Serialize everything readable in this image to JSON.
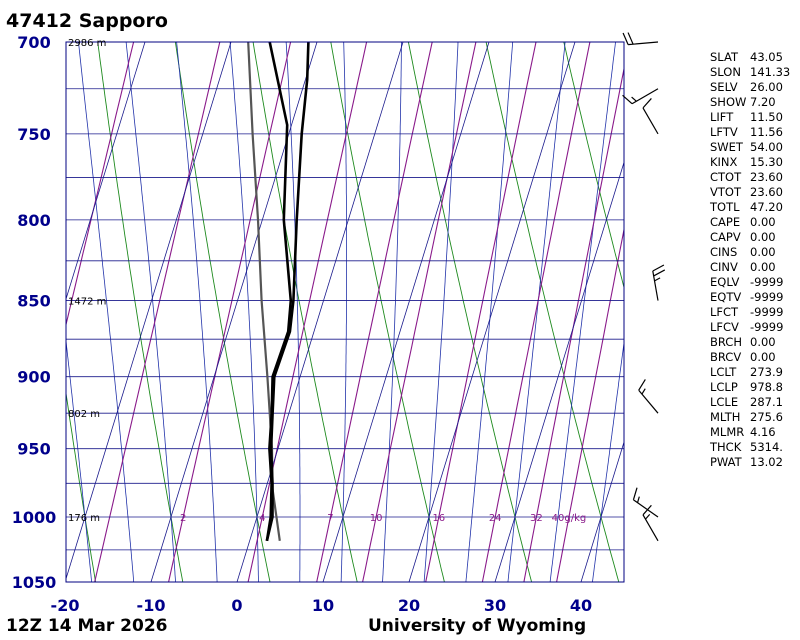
{
  "header": {
    "title": "47412  Sapporo"
  },
  "footer": {
    "time": "12Z 14 Mar 2026",
    "source": "University of Wyoming"
  },
  "colors": {
    "isotherm": "#1a1a8c",
    "dry_adiabat": "#1e8a1e",
    "moist_adiabat": "#2233aa",
    "mixing_ratio": "#8a1a8a",
    "temperature": "#000000",
    "dewpoint": "#000000",
    "parcel": "#555555",
    "axis_label": "#00008b"
  },
  "indices": [
    {
      "name": "SLAT",
      "value": "43.05"
    },
    {
      "name": "SLON",
      "value": "141.33"
    },
    {
      "name": "SELV",
      "value": "26.00"
    },
    {
      "name": "SHOW",
      "value": "7.20"
    },
    {
      "name": "LIFT",
      "value": "11.50"
    },
    {
      "name": "LFTV",
      "value": "11.56"
    },
    {
      "name": "SWET",
      "value": "54.00"
    },
    {
      "name": "KINX",
      "value": "15.30"
    },
    {
      "name": "CTOT",
      "value": "23.60"
    },
    {
      "name": "VTOT",
      "value": "23.60"
    },
    {
      "name": "TOTL",
      "value": "47.20"
    },
    {
      "name": "CAPE",
      "value": "0.00"
    },
    {
      "name": "CAPV",
      "value": "0.00"
    },
    {
      "name": "CINS",
      "value": "0.00"
    },
    {
      "name": "CINV",
      "value": "0.00"
    },
    {
      "name": "EQLV",
      "value": "-9999"
    },
    {
      "name": "EQTV",
      "value": "-9999"
    },
    {
      "name": "LFCT",
      "value": "-9999"
    },
    {
      "name": "LFCV",
      "value": "-9999"
    },
    {
      "name": "BRCH",
      "value": "0.00"
    },
    {
      "name": "BRCV",
      "value": "0.00"
    },
    {
      "name": "LCLT",
      "value": "273.9"
    },
    {
      "name": "LCLP",
      "value": "978.8"
    },
    {
      "name": "LCLE",
      "value": "287.1"
    },
    {
      "name": "MLTH",
      "value": "275.6"
    },
    {
      "name": "MLMR",
      "value": "4.16"
    },
    {
      "name": "THCK",
      "value": "5314."
    },
    {
      "name": "PWAT",
      "value": "13.02"
    }
  ],
  "chart_data": {
    "type": "skew-t",
    "x_range": [
      -20,
      45
    ],
    "y_range": [
      700,
      1050
    ],
    "y_scale": "log",
    "x_ticks": [
      -20,
      -10,
      0,
      10,
      20,
      30,
      40
    ],
    "y_ticks": [
      700,
      750,
      800,
      850,
      900,
      950,
      1000,
      1050
    ],
    "pressure_gridlines": [
      700,
      725,
      750,
      775,
      800,
      825,
      850,
      875,
      900,
      925,
      950,
      975,
      1000,
      1025,
      1050
    ],
    "height_labels": [
      {
        "p": 700,
        "text": "2986 m"
      },
      {
        "p": 850,
        "text": "1472 m"
      },
      {
        "p": 925,
        "text": "802 m"
      },
      {
        "p": 1000,
        "text": "176 m"
      }
    ],
    "mixing_ratio_labels": [
      "2",
      "4",
      "7",
      "10",
      "16",
      "24",
      "32",
      "40g/kg"
    ],
    "temperature_profile": [
      {
        "p": 1018,
        "t": 2.0
      },
      {
        "p": 1000,
        "t": 1.8
      },
      {
        "p": 975,
        "t": 0.6
      },
      {
        "p": 950,
        "t": -0.8
      },
      {
        "p": 925,
        "t": -1.9
      },
      {
        "p": 900,
        "t": -3.0
      },
      {
        "p": 870,
        "t": -2.8
      },
      {
        "p": 850,
        "t": -3.5
      },
      {
        "p": 800,
        "t": -6.0
      },
      {
        "p": 750,
        "t": -8.5
      },
      {
        "p": 720,
        "t": -9.8
      },
      {
        "p": 700,
        "t": -11.0
      }
    ],
    "dewpoint_profile": [
      {
        "p": 1018,
        "t": 2.0
      },
      {
        "p": 1000,
        "t": 1.6
      },
      {
        "p": 975,
        "t": 0.5
      },
      {
        "p": 950,
        "t": -1.0
      },
      {
        "p": 925,
        "t": -2.0
      },
      {
        "p": 900,
        "t": -3.2
      },
      {
        "p": 870,
        "t": -3.0
      },
      {
        "p": 850,
        "t": -3.8
      },
      {
        "p": 800,
        "t": -7.5
      },
      {
        "p": 745,
        "t": -10.5
      },
      {
        "p": 700,
        "t": -15.5
      }
    ],
    "parcel_profile": [
      {
        "p": 1018,
        "t": 3.5
      },
      {
        "p": 979,
        "t": 0.8
      },
      {
        "p": 950,
        "t": -0.7
      },
      {
        "p": 900,
        "t": -3.8
      },
      {
        "p": 850,
        "t": -7.2
      },
      {
        "p": 800,
        "t": -10.5
      },
      {
        "p": 750,
        "t": -14.2
      },
      {
        "p": 700,
        "t": -18.0
      }
    ],
    "wind_barbs": [
      {
        "p": 700,
        "dir": 265,
        "speed": 20
      },
      {
        "p": 725,
        "dir": 240,
        "speed": 15
      },
      {
        "p": 750,
        "dir": 330,
        "speed": 10
      },
      {
        "p": 850,
        "dir": 350,
        "speed": 25
      },
      {
        "p": 925,
        "dir": 320,
        "speed": 15
      },
      {
        "p": 1000,
        "dir": 305,
        "speed": 15
      },
      {
        "p": 1018,
        "dir": 330,
        "speed": 15
      }
    ]
  }
}
